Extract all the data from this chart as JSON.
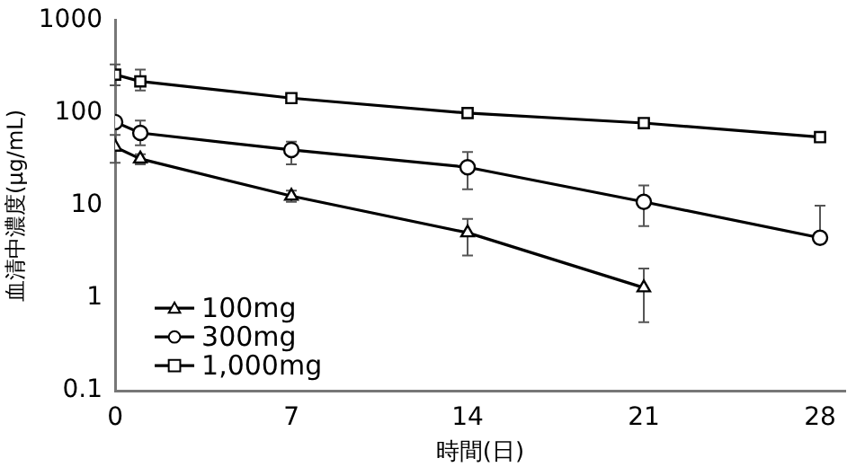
{
  "chart_data": {
    "type": "line",
    "xlabel": "時間(日)",
    "ylabel": "血清中濃度(μg/mL)",
    "x": [
      0,
      1,
      7,
      14,
      21,
      28
    ],
    "log": "y",
    "xlim": [
      0,
      29
    ],
    "xticks": [
      0,
      7,
      14,
      21,
      28
    ],
    "ylim": [
      0.1,
      1000
    ],
    "yticks": [
      0.1,
      1,
      10,
      100,
      1000
    ],
    "grid": false,
    "legend": "bottom left",
    "line_style": "solid",
    "series": [
      {
        "name": "100mg",
        "color": "#000000",
        "marker": "triangle",
        "values": [
          43,
          32,
          12.7,
          5.1,
          1.3,
          null
        ],
        "errors": [
          [
            29,
            58
          ],
          [
            28,
            36
          ],
          [
            11,
            14.5
          ],
          [
            2.9,
            7.2
          ],
          [
            0.55,
            2.1
          ],
          null
        ]
      },
      {
        "name": "300mg",
        "color": "#000000",
        "marker": "circle",
        "values": [
          80,
          61,
          40,
          26,
          11,
          4.5
        ],
        "errors": [
          null,
          [
            45,
            83
          ],
          [
            28,
            49
          ],
          [
            15,
            38
          ],
          [
            6,
            16.5
          ],
          [
            4.5,
            10
          ]
        ]
      },
      {
        "name": "1,000mg",
        "color": "#000000",
        "marker": "square",
        "values": [
          260,
          220,
          145,
          100,
          78,
          55
        ],
        "errors": [
          [
            199,
            336
          ],
          [
            175,
            294
          ],
          null,
          null,
          null,
          null
        ]
      }
    ]
  }
}
